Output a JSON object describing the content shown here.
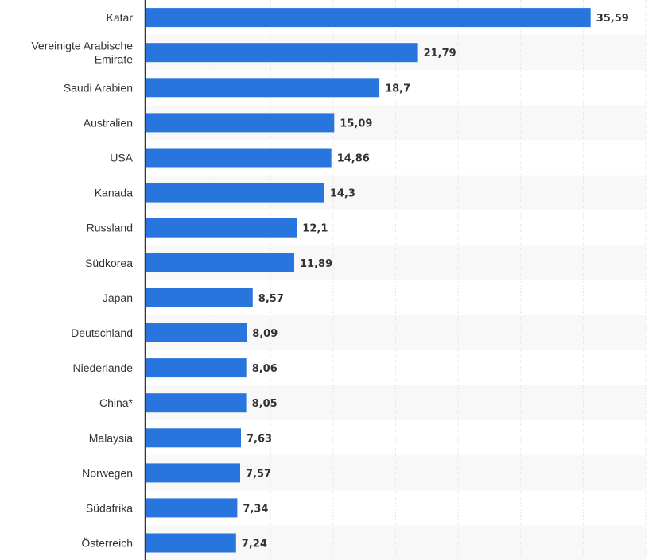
{
  "chart_data": {
    "type": "bar",
    "orientation": "horizontal",
    "categories": [
      "Katar",
      "Vereinigte Arabische Emirate",
      "Saudi Arabien",
      "Australien",
      "USA",
      "Kanada",
      "Russland",
      "Südkorea",
      "Japan",
      "Deutschland",
      "Niederlande",
      "China*",
      "Malaysia",
      "Norwegen",
      "Südafrika",
      "Österreich"
    ],
    "category_lines": [
      [
        "Katar"
      ],
      [
        "Vereinigte Arabische",
        "Emirate"
      ],
      [
        "Saudi Arabien"
      ],
      [
        "Australien"
      ],
      [
        "USA"
      ],
      [
        "Kanada"
      ],
      [
        "Russland"
      ],
      [
        "Südkorea"
      ],
      [
        "Japan"
      ],
      [
        "Deutschland"
      ],
      [
        "Niederlande"
      ],
      [
        "China*"
      ],
      [
        "Malaysia"
      ],
      [
        "Norwegen"
      ],
      [
        "Südafrika"
      ],
      [
        "Österreich"
      ]
    ],
    "values": [
      35.59,
      21.79,
      18.7,
      15.09,
      14.86,
      14.3,
      12.1,
      11.89,
      8.57,
      8.09,
      8.06,
      8.05,
      7.63,
      7.57,
      7.34,
      7.24
    ],
    "value_labels": [
      "35,59",
      "21,79",
      "18,7",
      "15,09",
      "14,86",
      "14,3",
      "12,1",
      "11,89",
      "8,57",
      "8,09",
      "8,06",
      "8,05",
      "7,63",
      "7,57",
      "7,34",
      "7,24"
    ],
    "xlim": [
      0,
      40
    ],
    "grid_step": 5,
    "grid": true,
    "legend": "none",
    "title": "",
    "xlabel": "",
    "ylabel": "",
    "colors": {
      "bar": "#2876dd",
      "grid": "#dddddd",
      "band": "#f8f8f8",
      "axis": "#333333"
    }
  }
}
